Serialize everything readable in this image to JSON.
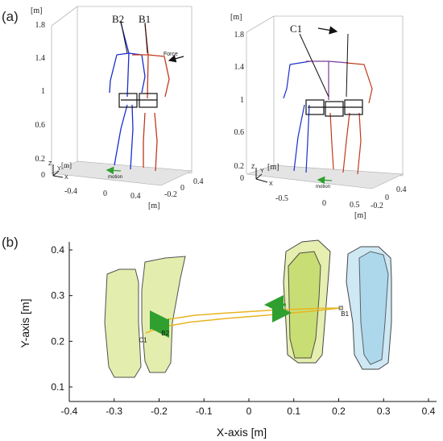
{
  "panel_a": {
    "label": "(a)",
    "left": {
      "unit_top": "[m]",
      "y_ticks": [
        "1.8",
        "1.4",
        "1",
        "0.6",
        "0.2",
        "0"
      ],
      "unit_base": "[m]",
      "axis_z": "Z",
      "axis_y": "Y",
      "axis_x": "X",
      "x_ticks": [
        "-0.4",
        "0",
        "0.4"
      ],
      "x_unit": "[m]",
      "d_ticks": [
        "-0.2",
        "0",
        "0.4"
      ],
      "name_b2": "B2",
      "name_b1": "B1",
      "force_label": "Force",
      "motion_label": "motion"
    },
    "right": {
      "unit_top": "[m]",
      "y_ticks": [
        "1.8",
        "1.4",
        "1",
        "0.6",
        "0.2",
        "0"
      ],
      "unit_base": "[m]",
      "axis_z": "Z",
      "axis_y": "Y",
      "axis_x": "X",
      "x_ticks": [
        "-0.5",
        "0",
        "0.5"
      ],
      "x_unit": "[m]",
      "d_ticks": [
        "-0.2",
        "0",
        "0.4"
      ],
      "name_c1": "C1",
      "motion_label": "motion"
    }
  },
  "panel_b": {
    "label": "(b)"
  },
  "colors": {
    "skeleton_blue": "#1a2ecc",
    "skeleton_red": "#c0391b",
    "pelvis_black": "#111111",
    "foot_green": "#dfeaa0",
    "foot_green_mid": "#c3dc6a",
    "foot_blue": "#c9e6f3",
    "foot_blue_dark": "#a3d3ea",
    "trajectory": "#e7b521",
    "arrow_green": "#2fa02f"
  },
  "chart_data": {
    "type": "line",
    "title": "",
    "xlabel": "X-axis [m]",
    "ylabel": "Y-axis [m]",
    "xlim": [
      -0.4,
      0.4
    ],
    "ylim": [
      0.07,
      0.42
    ],
    "x_ticks": [
      "-0.4",
      "-0.3",
      "-0.2",
      "-0.1",
      "0",
      "0.1",
      "0.2",
      "0.3",
      "0.4"
    ],
    "y_ticks": [
      "0.1",
      "0.2",
      "0.3",
      "0.4"
    ],
    "grid": false,
    "series": [
      {
        "x": [
          0.205,
          0.15,
          0.05,
          -0.05,
          -0.12,
          -0.18,
          -0.21,
          -0.22
        ],
        "y": [
          0.273,
          0.272,
          0.268,
          0.262,
          0.257,
          0.248,
          0.237,
          0.225
        ]
      },
      {
        "x": [
          0.205,
          0.15,
          0.05,
          -0.05,
          -0.13,
          -0.19,
          -0.22,
          -0.23
        ],
        "y": [
          0.273,
          0.267,
          0.258,
          0.25,
          0.242,
          0.232,
          0.222,
          0.218
        ]
      }
    ],
    "annotations": [
      {
        "text": "B1",
        "x": 0.205,
        "y": 0.255
      },
      {
        "text": "B2",
        "x": -0.195,
        "y": 0.213
      },
      {
        "text": "C1",
        "x": -0.245,
        "y": 0.198
      }
    ]
  }
}
